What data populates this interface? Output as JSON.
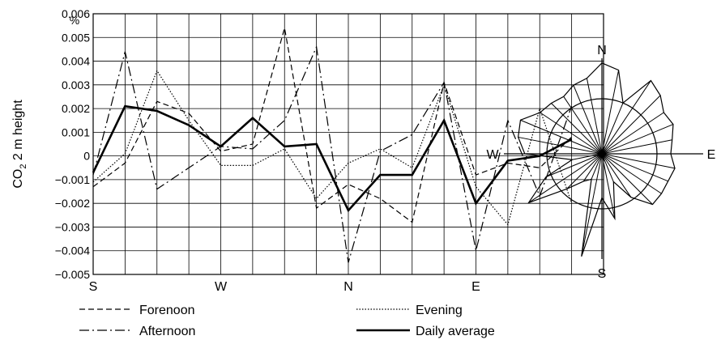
{
  "chart_data": [
    {
      "type": "line",
      "ylabel_main": "CO",
      "ylabel_sub": "2",
      "ylabel_rest": " 2 m height",
      "yunit": "%",
      "ylim": [
        -0.005,
        0.006
      ],
      "yticks": [
        "0.006",
        "0.005",
        "0.004",
        "0.003",
        "0.002",
        "0.001",
        "0",
        "−0.001",
        "−0.002",
        "−0.003",
        "−0.004",
        "−0.005"
      ],
      "xticks": [
        "S",
        "W",
        "N",
        "E"
      ],
      "grid": true,
      "legend_position": "bottom",
      "series": [
        {
          "name": "Forenoon",
          "style": "dashed",
          "values": [
            -0.0013,
            -0.0003,
            0.0023,
            0.0018,
            0.0002,
            0.0005,
            0.0054,
            -0.0022,
            -0.0012,
            -0.0018,
            -0.0028,
            0.0031,
            -0.0008,
            -0.0003,
            -0.0005,
            0.0008
          ]
        },
        {
          "name": "Afternoon",
          "style": "dashdot",
          "values": [
            -0.0008,
            0.0044,
            -0.0014,
            -0.0005,
            0.0004,
            0.0003,
            0.0015,
            0.0046,
            -0.0045,
            0.0002,
            0.0009,
            0.0031,
            -0.004,
            0.0015,
            -0.0017,
            0.0021
          ]
        },
        {
          "name": "Evening",
          "style": "dotted",
          "values": [
            -0.0011,
            0.0001,
            0.0036,
            0.0015,
            -0.0004,
            -0.0004,
            0.0003,
            -0.0018,
            -0.0003,
            0.0003,
            -0.0005,
            0.003,
            -0.0013,
            -0.0029,
            0.002,
            -0.002
          ]
        },
        {
          "name": "Daily average",
          "style": "solid",
          "values": [
            -0.0007,
            0.0021,
            0.0019,
            0.0013,
            0.0004,
            0.0016,
            0.0004,
            0.0005,
            -0.0023,
            -0.0008,
            -0.0008,
            0.0015,
            -0.002,
            -0.0002,
            0.0,
            0.0007
          ]
        }
      ]
    },
    {
      "type": "radar",
      "direction_labels": {
        "n": "N",
        "s": "S",
        "w": "W",
        "e": "E"
      },
      "reference_circle": 1.0,
      "values": [
        1.65,
        1.55,
        1.0,
        1.6,
        1.5,
        1.35,
        1.4,
        1.3,
        1.25,
        1.35,
        1.3,
        1.3,
        1.3,
        0.95,
        0.55,
        1.2,
        0.8,
        1.9,
        0.5,
        0.6,
        0.9,
        1.6,
        1.1,
        0.55,
        1.4,
        1.55,
        1.6,
        1.35,
        1.3,
        1.25,
        1.35,
        1.4
      ]
    }
  ],
  "legend": {
    "forenoon": "Forenoon",
    "afternoon": "Afternoon",
    "evening": "Evening",
    "daily": "Daily average"
  }
}
